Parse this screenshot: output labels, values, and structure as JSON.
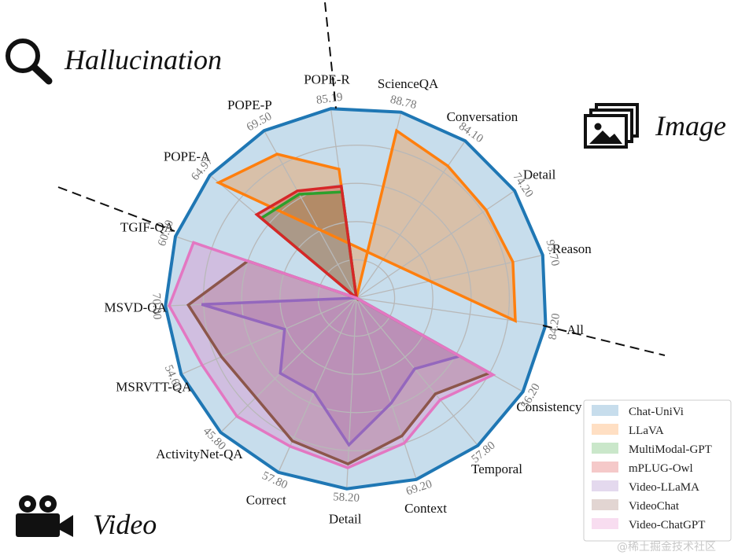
{
  "chart_data": {
    "type": "radar",
    "categories": [
      "ScienceQA",
      "Conversation",
      "Detail",
      "Reason",
      "All",
      "Consistency",
      "Temporal",
      "Context",
      "Detail",
      "Correct",
      "ActivityNet-QA",
      "MSRVTT-QA",
      "MSVD-QA",
      "TGIF-QA",
      "POPE-A",
      "POPE-P",
      "POPE-R"
    ],
    "max_labels": [
      "88.78",
      "84.10",
      "74.20",
      "93.70",
      "84.20",
      "56.20",
      "57.80",
      "69.20",
      "58.20",
      "57.80",
      "45.80",
      "54.60",
      "70.00",
      "60.30",
      "64.97",
      "69.50",
      "85.19"
    ],
    "rlim": [
      0,
      1
    ],
    "grid": true,
    "groups": [
      {
        "label": "Hallucination",
        "icon": "magnifier-icon"
      },
      {
        "label": "Image",
        "icon": "images-icon"
      },
      {
        "label": "Video",
        "icon": "video-camera-icon"
      }
    ],
    "legend_position": "bottom-right",
    "series": [
      {
        "name": "Chat-UniVi",
        "color": "#1f77b4",
        "values": [
          1.0,
          1.0,
          1.0,
          1.0,
          1.0,
          1.0,
          1.0,
          1.0,
          1.0,
          1.0,
          1.0,
          1.0,
          1.0,
          1.0,
          1.0,
          1.0,
          1.0
        ]
      },
      {
        "name": "LLaVA",
        "color": "#ff7f0e",
        "values": [
          0.9,
          0.84,
          0.82,
          0.84,
          0.84,
          null,
          null,
          null,
          null,
          null,
          null,
          null,
          null,
          null,
          0.94,
          0.86,
          0.68
        ]
      },
      {
        "name": "MultiModal-GPT",
        "color": "#2ca02c",
        "values": [
          null,
          null,
          null,
          null,
          null,
          null,
          null,
          null,
          null,
          null,
          null,
          null,
          null,
          null,
          0.65,
          0.62,
          0.56
        ]
      },
      {
        "name": "mPLUG-Owl",
        "color": "#d62728",
        "values": [
          null,
          null,
          null,
          null,
          null,
          null,
          null,
          null,
          null,
          null,
          null,
          null,
          null,
          null,
          0.68,
          0.64,
          0.59
        ]
      },
      {
        "name": "Video-LLaMA",
        "color": "#9467bd",
        "values": [
          null,
          null,
          null,
          null,
          null,
          0.62,
          0.48,
          0.58,
          0.77,
          0.54,
          0.56,
          0.41,
          0.81,
          null,
          null,
          null,
          null
        ]
      },
      {
        "name": "VideoChat",
        "color": "#8c564b",
        "values": [
          null,
          null,
          null,
          null,
          null,
          0.8,
          0.65,
          0.76,
          0.87,
          0.82,
          0.74,
          0.77,
          0.88,
          0.6,
          null,
          null,
          null
        ]
      },
      {
        "name": "Video-ChatGPT",
        "color": "#e377c2",
        "values": [
          null,
          null,
          null,
          null,
          null,
          0.82,
          0.69,
          0.8,
          0.89,
          0.85,
          0.88,
          0.88,
          0.98,
          0.9,
          null,
          null,
          null
        ]
      }
    ]
  },
  "watermark": "@稀土掘金技术社区"
}
